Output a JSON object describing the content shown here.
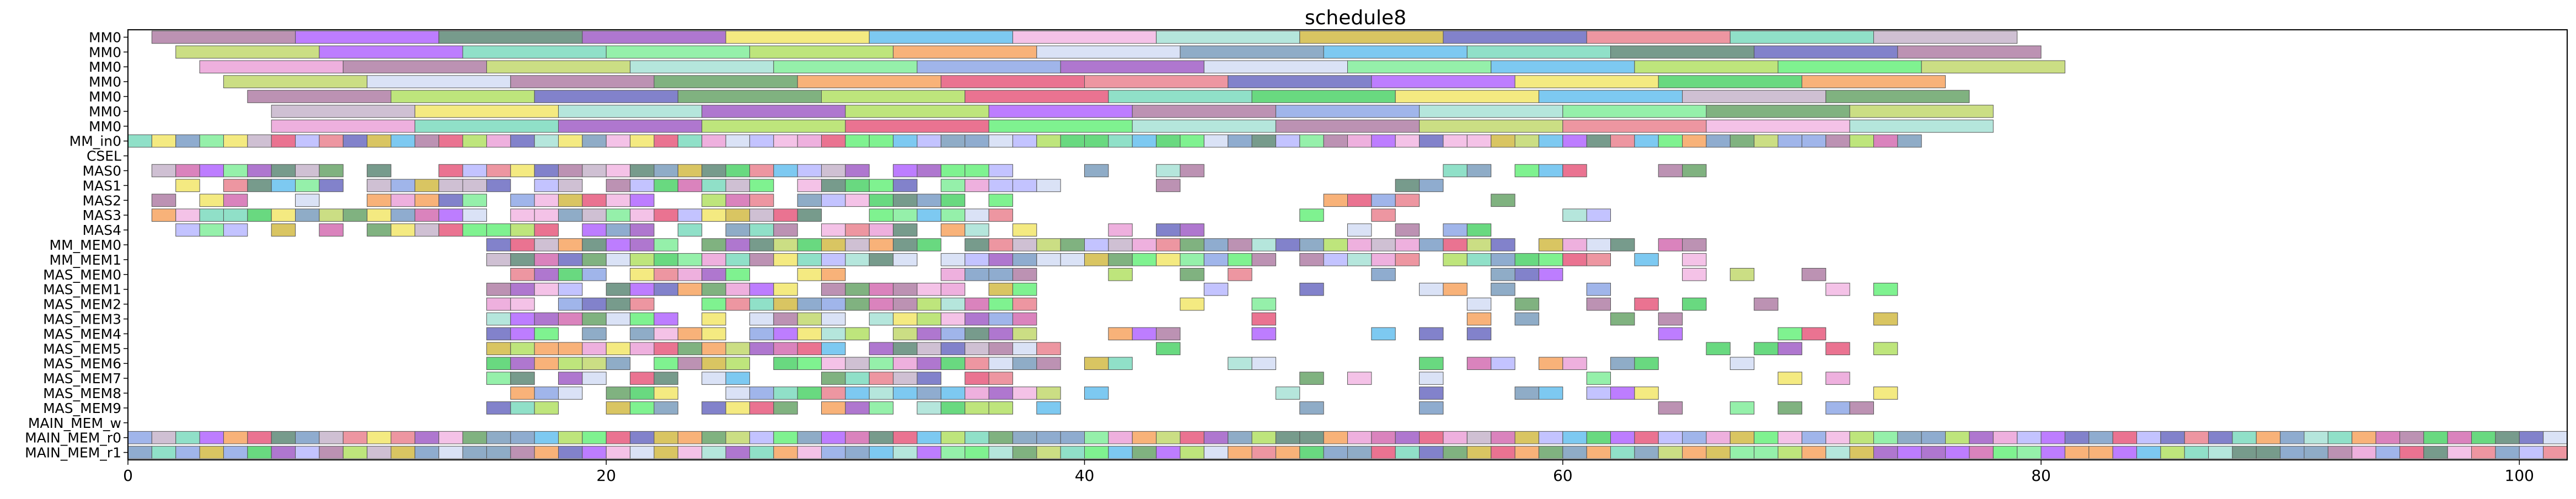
{
  "chart_data": {
    "type": "gantt",
    "title": "schedule8",
    "xlabel": "",
    "ylabel": "",
    "xlim": [
      0,
      102
    ],
    "x_ticks": [
      0,
      20,
      40,
      60,
      80,
      100
    ],
    "grid": false,
    "rows": [
      "MM0",
      "MM0",
      "MM0",
      "MM0",
      "MM0",
      "MM0",
      "MM0",
      "MM_in0",
      "CSEL",
      "MAS0",
      "MAS1",
      "MAS2",
      "MAS3",
      "MAS4",
      "MM_MEM0",
      "MM_MEM1",
      "MAS_MEM0",
      "MAS_MEM1",
      "MAS_MEM2",
      "MAS_MEM3",
      "MAS_MEM4",
      "MAS_MEM5",
      "MAS_MEM6",
      "MAS_MEM7",
      "MAS_MEM8",
      "MAS_MEM9",
      "MAIN_MEM_w",
      "MAIN_MEM_r0",
      "MAIN_MEM_r1"
    ],
    "palette": [
      "#b07fa6",
      "#b266ff",
      "#5f8a78",
      "#a15fc7",
      "#f2e66b",
      "#66bfef",
      "#f2b7e3",
      "#a8e2d6",
      "#d2bb46",
      "#6c6cc2",
      "#ea8490",
      "#7ddbbe",
      "#c7b5cb",
      "#c2d86e",
      "#8fa8e6",
      "#7b9dbd",
      "#83ed9b",
      "#f7a561",
      "#4fd26a",
      "#d3ddf5",
      "#7b9ec7",
      "#e65a7e",
      "#6aa46a",
      "#b3e065",
      "#eba2d8",
      "#69f07c",
      "#b8b8ff",
      "#d36db1"
    ],
    "bars": [
      {
        "row": 0,
        "start": 1,
        "end": 7,
        "c": 0
      },
      {
        "row": 0,
        "start": 7,
        "end": 13,
        "c": 1
      },
      {
        "row": 0,
        "start": 13,
        "end": 19,
        "c": 2
      },
      {
        "row": 0,
        "start": 19,
        "end": 25,
        "c": 3
      },
      {
        "row": 0,
        "start": 25,
        "end": 31,
        "c": 4
      },
      {
        "row": 0,
        "start": 31,
        "end": 37,
        "c": 5
      },
      {
        "row": 0,
        "start": 37,
        "end": 43,
        "c": 6
      },
      {
        "row": 0,
        "start": 43,
        "end": 49,
        "c": 7
      },
      {
        "row": 0,
        "start": 49,
        "end": 55,
        "c": 8
      },
      {
        "row": 0,
        "start": 55,
        "end": 61,
        "c": 9
      },
      {
        "row": 0,
        "start": 61,
        "end": 67,
        "c": 10
      },
      {
        "row": 0,
        "start": 67,
        "end": 73,
        "c": 11
      },
      {
        "row": 0,
        "start": 73,
        "end": 79,
        "c": 12
      },
      {
        "row": 1,
        "start": 2,
        "end": 8,
        "c": 13
      },
      {
        "row": 1,
        "start": 8,
        "end": 14,
        "c": 1
      },
      {
        "row": 1,
        "start": 14,
        "end": 20,
        "c": 11
      },
      {
        "row": 1,
        "start": 20,
        "end": 26,
        "c": 16
      },
      {
        "row": 1,
        "start": 26,
        "end": 32,
        "c": 23
      },
      {
        "row": 1,
        "start": 32,
        "end": 38,
        "c": 17
      },
      {
        "row": 1,
        "start": 38,
        "end": 44,
        "c": 19
      },
      {
        "row": 1,
        "start": 44,
        "end": 50,
        "c": 15
      },
      {
        "row": 1,
        "start": 50,
        "end": 56,
        "c": 5
      },
      {
        "row": 1,
        "start": 56,
        "end": 62,
        "c": 11
      },
      {
        "row": 1,
        "start": 62,
        "end": 68,
        "c": 2
      },
      {
        "row": 1,
        "start": 68,
        "end": 74,
        "c": 9
      },
      {
        "row": 1,
        "start": 74,
        "end": 80,
        "c": 0
      },
      {
        "row": 2,
        "start": 3,
        "end": 9,
        "c": 24
      },
      {
        "row": 2,
        "start": 9,
        "end": 15,
        "c": 0
      },
      {
        "row": 2,
        "start": 15,
        "end": 21,
        "c": 13
      },
      {
        "row": 2,
        "start": 21,
        "end": 27,
        "c": 7
      },
      {
        "row": 2,
        "start": 27,
        "end": 33,
        "c": 16
      },
      {
        "row": 2,
        "start": 33,
        "end": 39,
        "c": 14
      },
      {
        "row": 2,
        "start": 39,
        "end": 45,
        "c": 3
      },
      {
        "row": 2,
        "start": 45,
        "end": 51,
        "c": 19
      },
      {
        "row": 2,
        "start": 51,
        "end": 57,
        "c": 16
      },
      {
        "row": 2,
        "start": 57,
        "end": 63,
        "c": 5
      },
      {
        "row": 2,
        "start": 63,
        "end": 69,
        "c": 23
      },
      {
        "row": 2,
        "start": 69,
        "end": 75,
        "c": 25
      },
      {
        "row": 2,
        "start": 75,
        "end": 81,
        "c": 13
      },
      {
        "row": 3,
        "start": 4,
        "end": 10,
        "c": 13
      },
      {
        "row": 3,
        "start": 10,
        "end": 16,
        "c": 19
      },
      {
        "row": 3,
        "start": 16,
        "end": 22,
        "c": 0
      },
      {
        "row": 3,
        "start": 22,
        "end": 28,
        "c": 22
      },
      {
        "row": 3,
        "start": 28,
        "end": 34,
        "c": 17
      },
      {
        "row": 3,
        "start": 34,
        "end": 40,
        "c": 21
      },
      {
        "row": 3,
        "start": 40,
        "end": 46,
        "c": 10
      },
      {
        "row": 3,
        "start": 46,
        "end": 52,
        "c": 9
      },
      {
        "row": 3,
        "start": 52,
        "end": 58,
        "c": 1
      },
      {
        "row": 3,
        "start": 58,
        "end": 64,
        "c": 4
      },
      {
        "row": 3,
        "start": 64,
        "end": 70,
        "c": 18
      },
      {
        "row": 3,
        "start": 70,
        "end": 76,
        "c": 17
      },
      {
        "row": 4,
        "start": 5,
        "end": 11,
        "c": 0
      },
      {
        "row": 4,
        "start": 11,
        "end": 17,
        "c": 23
      },
      {
        "row": 4,
        "start": 17,
        "end": 23,
        "c": 9
      },
      {
        "row": 4,
        "start": 23,
        "end": 29,
        "c": 22
      },
      {
        "row": 4,
        "start": 29,
        "end": 35,
        "c": 23
      },
      {
        "row": 4,
        "start": 35,
        "end": 41,
        "c": 21
      },
      {
        "row": 4,
        "start": 41,
        "end": 47,
        "c": 11
      },
      {
        "row": 4,
        "start": 47,
        "end": 53,
        "c": 18
      },
      {
        "row": 4,
        "start": 53,
        "end": 59,
        "c": 4
      },
      {
        "row": 4,
        "start": 59,
        "end": 65,
        "c": 5
      },
      {
        "row": 4,
        "start": 65,
        "end": 71,
        "c": 12
      },
      {
        "row": 4,
        "start": 71,
        "end": 77,
        "c": 22
      },
      {
        "row": 5,
        "start": 6,
        "end": 12,
        "c": 12
      },
      {
        "row": 5,
        "start": 12,
        "end": 18,
        "c": 4
      },
      {
        "row": 5,
        "start": 18,
        "end": 24,
        "c": 7
      },
      {
        "row": 5,
        "start": 24,
        "end": 30,
        "c": 3
      },
      {
        "row": 5,
        "start": 30,
        "end": 36,
        "c": 23
      },
      {
        "row": 5,
        "start": 36,
        "end": 42,
        "c": 1
      },
      {
        "row": 5,
        "start": 42,
        "end": 48,
        "c": 0
      },
      {
        "row": 5,
        "start": 48,
        "end": 54,
        "c": 14
      },
      {
        "row": 5,
        "start": 54,
        "end": 60,
        "c": 7
      },
      {
        "row": 5,
        "start": 60,
        "end": 66,
        "c": 16
      },
      {
        "row": 5,
        "start": 66,
        "end": 72,
        "c": 22
      },
      {
        "row": 5,
        "start": 72,
        "end": 78,
        "c": 13
      }
    ]
  }
}
